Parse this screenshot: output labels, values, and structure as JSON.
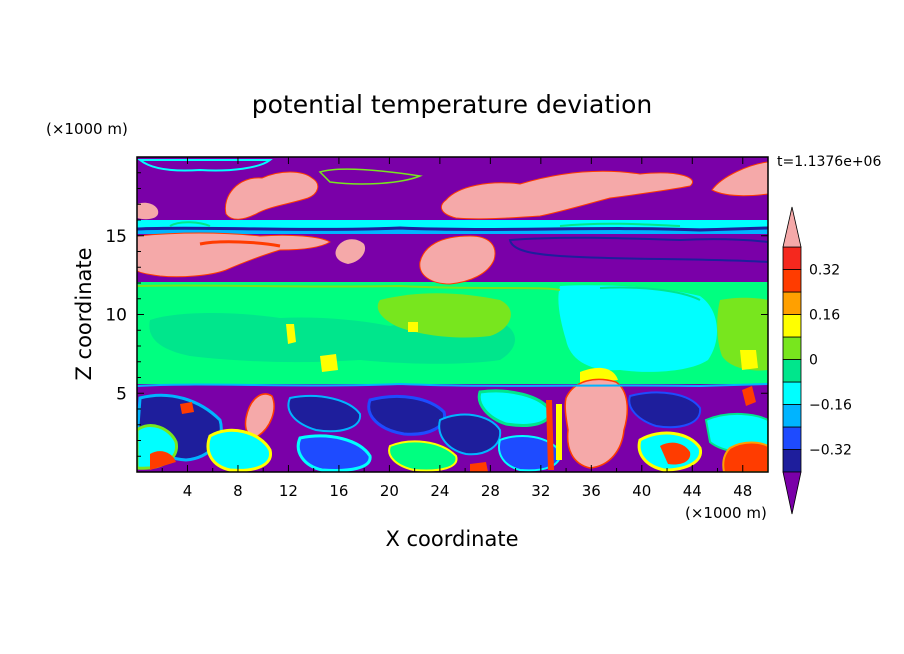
{
  "chart_data": {
    "type": "heatmap",
    "title": "potential temperature deviation",
    "xlabel": "X coordinate",
    "ylabel": "Z coordinate",
    "x_unit": "(×1000 m)",
    "y_unit": "(×1000 m)",
    "time_label": "t=1.1376e+06",
    "xlim": [
      0,
      50
    ],
    "ylim": [
      0,
      20
    ],
    "x_ticks": [
      4,
      8,
      12,
      16,
      20,
      24,
      28,
      32,
      36,
      40,
      44,
      48
    ],
    "y_ticks": [
      5,
      10,
      15
    ],
    "colorbar": {
      "levels": [
        -0.4,
        -0.32,
        -0.24,
        -0.16,
        -0.08,
        0,
        0.08,
        0.16,
        0.24,
        0.32,
        0.4
      ],
      "tick_values": [
        -0.32,
        -0.16,
        0,
        0.16,
        0.32
      ],
      "tick_labels": [
        "−0.32",
        "−0.16",
        "0",
        "0.16",
        "0.32"
      ],
      "colors": [
        "#7a00a8",
        "#1e1e9c",
        "#1e4bff",
        "#00b4ff",
        "#00ffff",
        "#00e68c",
        "#78e61e",
        "#ffff00",
        "#ffa000",
        "#ff3c00",
        "#f5281e",
        "#f5a9a9"
      ],
      "under_color": "#7a00a8",
      "over_color": "#f5a9a9"
    },
    "field_bands": [
      {
        "z_range": [
          16,
          20
        ],
        "dominant": "#7a00a8",
        "patches": "#f5a9a9"
      },
      {
        "z_range": [
          15.3,
          16
        ],
        "dominant": "#00ffff"
      },
      {
        "z_range": [
          12.5,
          15.3
        ],
        "dominant": "#7a00a8",
        "patches": "#f5a9a9"
      },
      {
        "z_range": [
          5.5,
          12.5
        ],
        "dominant": "#00ff80",
        "patches": "#00ffff"
      },
      {
        "z_range": [
          0,
          5.5
        ],
        "dominant": "#7a00a8",
        "patches": "mixed"
      }
    ]
  }
}
